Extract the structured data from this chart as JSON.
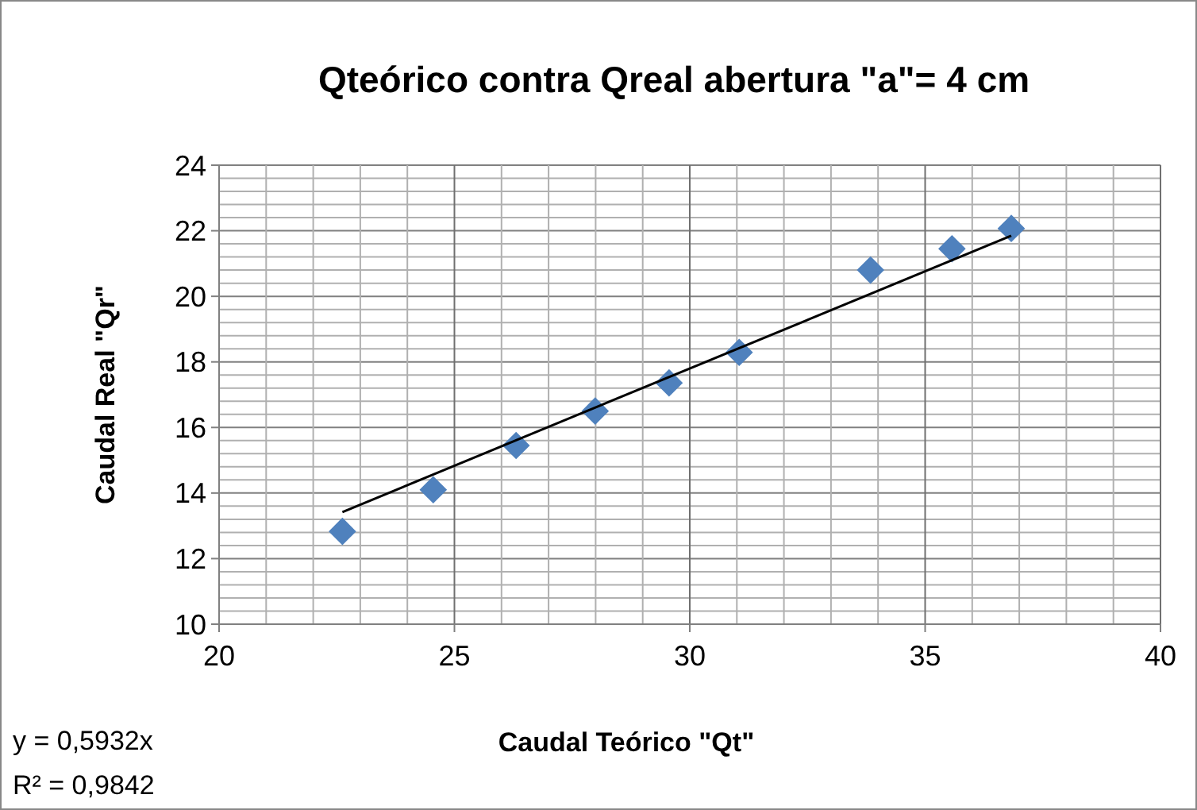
{
  "chart_data": {
    "type": "scatter",
    "title": "Qteórico contra Qreal abertura \"a\"= 4 cm",
    "xlabel": "Caudal Teórico \"Qt\"",
    "ylabel": "Caudal Real \"Qr\"",
    "xlim": [
      20,
      40
    ],
    "xticks": [
      20,
      {
        "value": 21,
        "label": null
      },
      {
        "value": 22,
        "label": null
      },
      {
        "value": 23,
        "label": null
      },
      {
        "value": 24,
        "label": null
      },
      25,
      {
        "value": 26,
        "label": null
      },
      {
        "value": 27,
        "label": null
      },
      {
        "value": 28,
        "label": null
      },
      {
        "value": 29,
        "label": null
      },
      30,
      {
        "value": 31,
        "label": null
      },
      {
        "value": 32,
        "label": null
      },
      {
        "value": 33,
        "label": null
      },
      {
        "value": 34,
        "label": null
      },
      35,
      {
        "value": 36,
        "label": null
      },
      {
        "value": 37,
        "label": null
      },
      {
        "value": 38,
        "label": null
      },
      {
        "value": 39,
        "label": null
      },
      40
    ],
    "ylim": [
      10,
      24
    ],
    "yticks": [
      10,
      {
        "value": 10.4,
        "label": null
      },
      {
        "value": 10.8,
        "label": null
      },
      {
        "value": 11.2,
        "label": null
      },
      {
        "value": 11.6,
        "label": null
      },
      12,
      {
        "value": 12.4,
        "label": null
      },
      {
        "value": 12.8,
        "label": null
      },
      {
        "value": 13.2,
        "label": null
      },
      {
        "value": 13.6,
        "label": null
      },
      14,
      {
        "value": 14.4,
        "label": null
      },
      {
        "value": 14.8,
        "label": null
      },
      {
        "value": 15.2,
        "label": null
      },
      {
        "value": 15.6,
        "label": null
      },
      16,
      {
        "value": 16.4,
        "label": null
      },
      {
        "value": 16.8,
        "label": null
      },
      {
        "value": 17.2,
        "label": null
      },
      {
        "value": 17.6,
        "label": null
      },
      18,
      {
        "value": 18.4,
        "label": null
      },
      {
        "value": 18.8,
        "label": null
      },
      {
        "value": 19.2,
        "label": null
      },
      {
        "value": 19.6,
        "label": null
      },
      20,
      {
        "value": 20.4,
        "label": null
      },
      {
        "value": 20.8,
        "label": null
      },
      {
        "value": 21.2,
        "label": null
      },
      {
        "value": 21.6,
        "label": null
      },
      22,
      {
        "value": 22.4,
        "label": null
      },
      {
        "value": 22.8,
        "label": null
      },
      {
        "value": 23.2,
        "label": null
      },
      {
        "value": 23.6,
        "label": null
      },
      24
    ],
    "grid": true,
    "series": [
      {
        "marker": "diamond",
        "color": "#4f81bd",
        "x": [
          22.62,
          24.55,
          26.31,
          27.99,
          29.56,
          31.05,
          33.84,
          35.57,
          36.83
        ],
        "values": [
          12.83,
          14.1,
          15.45,
          16.5,
          17.36,
          18.29,
          20.8,
          21.45,
          22.07
        ]
      },
      {
        "type": "line",
        "marker": "none",
        "color": "#000000",
        "x": [
          22.62,
          36.83
        ],
        "values": [
          13.42,
          21.85
        ]
      }
    ],
    "annotations": [
      "y = 0,5932x",
      "R² = 0,9842"
    ]
  }
}
